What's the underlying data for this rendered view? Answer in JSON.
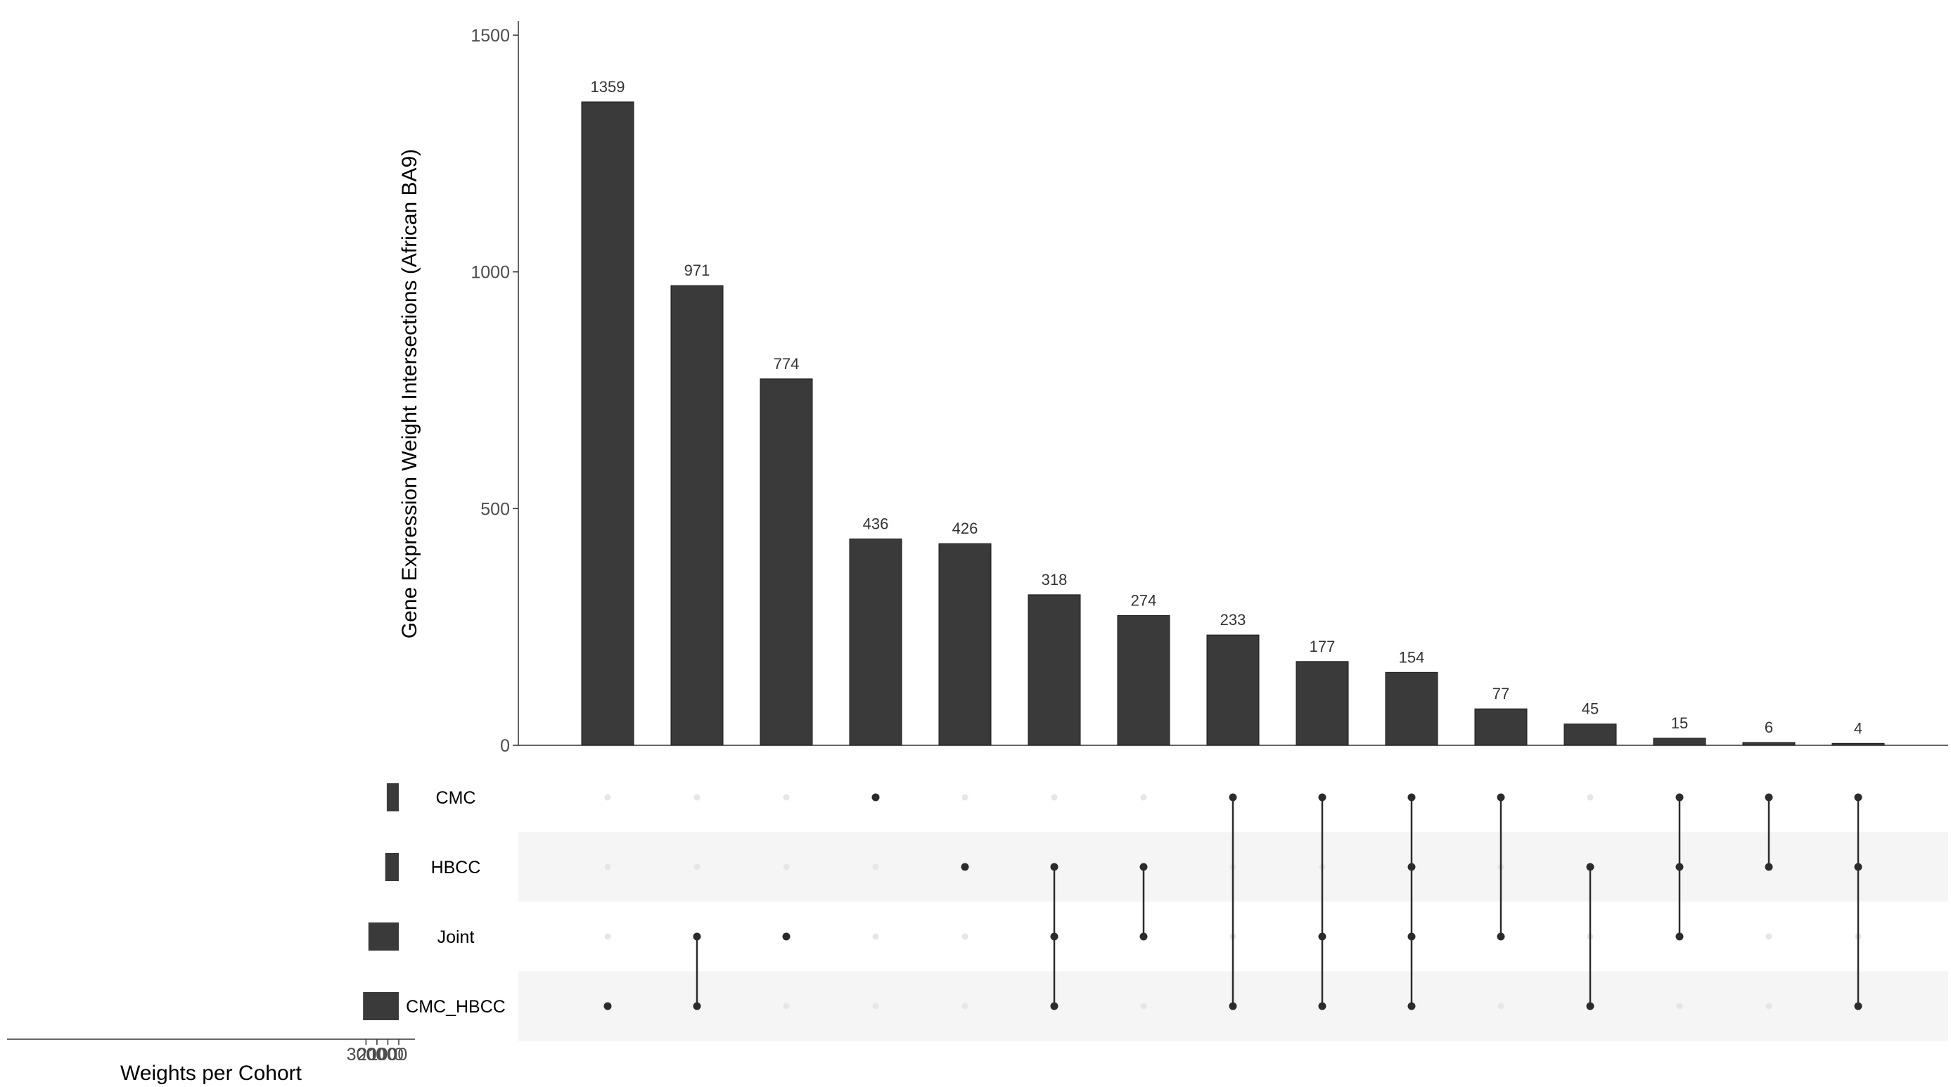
{
  "chart_data": {
    "type": "upset",
    "intersections": {
      "type": "bar",
      "ylabel": "Gene Expression Weight Intersections (African BA9)",
      "ylim": [
        0,
        1500
      ],
      "yticks": [
        0,
        500,
        1000,
        1500
      ],
      "values": [
        1359,
        971,
        774,
        436,
        426,
        318,
        274,
        233,
        177,
        154,
        77,
        45,
        15,
        6,
        4
      ],
      "members": [
        [
          "CMC_HBCC"
        ],
        [
          "Joint",
          "CMC_HBCC"
        ],
        [
          "Joint"
        ],
        [
          "CMC"
        ],
        [
          "HBCC"
        ],
        [
          "HBCC",
          "Joint",
          "CMC_HBCC"
        ],
        [
          "HBCC",
          "Joint"
        ],
        [
          "CMC",
          "CMC_HBCC"
        ],
        [
          "CMC",
          "Joint",
          "CMC_HBCC"
        ],
        [
          "CMC",
          "HBCC",
          "Joint",
          "CMC_HBCC"
        ],
        [
          "CMC",
          "Joint"
        ],
        [
          "HBCC",
          "CMC_HBCC"
        ],
        [
          "CMC",
          "HBCC",
          "Joint"
        ],
        [
          "CMC",
          "HBCC"
        ],
        [
          "CMC",
          "HBCC",
          "CMC_HBCC"
        ]
      ]
    },
    "set_sizes": {
      "type": "bar",
      "xlabel": "Weights per Cohort",
      "sets": [
        "CMC",
        "HBCC",
        "Joint",
        "CMC_HBCC"
      ],
      "values": [
        1100,
        1240,
        2780,
        3270
      ],
      "xlim": [
        3400,
        0
      ],
      "xticks": [
        3000,
        2000,
        1000,
        0
      ]
    },
    "colors": {
      "bar": "#3a3a3a",
      "dot_active": "#2b2b2b",
      "dot_inactive": "#e6e6e6",
      "stripe": "#f5f5f5",
      "axis": "#333333"
    }
  }
}
